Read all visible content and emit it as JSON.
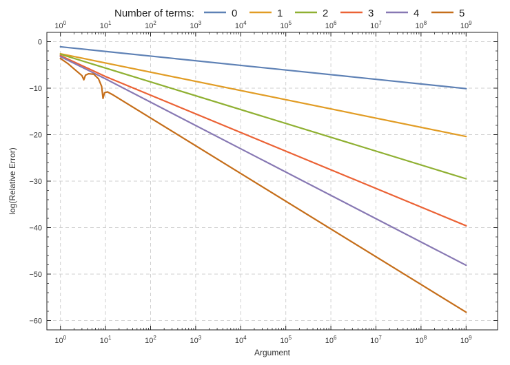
{
  "chart_data": {
    "type": "line",
    "legend": {
      "title": "Number of terms:",
      "placement": "top"
    },
    "xlabel": "Argument",
    "ylabel": "log(Relative Error)",
    "x_scale": "log10",
    "xlim": [
      0.5,
      5000000000
    ],
    "ylim": [
      -62,
      2
    ],
    "x_ticks": [
      {
        "value": 1,
        "base": "10",
        "exp": "0"
      },
      {
        "value": 10,
        "base": "10",
        "exp": "1"
      },
      {
        "value": 100,
        "base": "10",
        "exp": "2"
      },
      {
        "value": 1000,
        "base": "10",
        "exp": "3"
      },
      {
        "value": 10000,
        "base": "10",
        "exp": "4"
      },
      {
        "value": 100000,
        "base": "10",
        "exp": "5"
      },
      {
        "value": 1000000,
        "base": "10",
        "exp": "6"
      },
      {
        "value": 10000000,
        "base": "10",
        "exp": "7"
      },
      {
        "value": 100000000,
        "base": "10",
        "exp": "8"
      },
      {
        "value": 1000000000,
        "base": "10",
        "exp": "9"
      }
    ],
    "y_ticks": [
      {
        "value": 0,
        "label": "0"
      },
      {
        "value": -10,
        "label": "−10"
      },
      {
        "value": -20,
        "label": "−20"
      },
      {
        "value": -30,
        "label": "−30"
      },
      {
        "value": -40,
        "label": "−40"
      },
      {
        "value": -50,
        "label": "−50"
      },
      {
        "value": -60,
        "label": "−60"
      }
    ],
    "grid": true,
    "series": [
      {
        "name": "0",
        "color": "#5e81b5",
        "x": [
          1,
          1000000000
        ],
        "y": [
          -1.1,
          -10.1
        ]
      },
      {
        "name": "1",
        "color": "#e19c24",
        "x": [
          1,
          1000000000
        ],
        "y": [
          -2.6,
          -20.4
        ]
      },
      {
        "name": "2",
        "color": "#8fb032",
        "x": [
          1,
          1000000000
        ],
        "y": [
          -2.7,
          -29.5
        ]
      },
      {
        "name": "3",
        "color": "#eb6235",
        "x": [
          1,
          10,
          1000000000
        ],
        "y": [
          -3.0,
          -7.5,
          -39.6
        ]
      },
      {
        "name": "4",
        "color": "#8778b3",
        "x": [
          1,
          10,
          1000000000
        ],
        "y": [
          -3.2,
          -8.0,
          -48.1
        ]
      },
      {
        "name": "5",
        "color": "#c56e1a",
        "x": [
          1,
          1.5,
          2.2,
          3.0,
          3.3,
          3.6,
          4.2,
          5.5,
          7.0,
          8.2,
          8.8,
          9.5,
          11,
          15,
          1000000000
        ],
        "y": [
          -3.6,
          -4.8,
          -6.2,
          -7.3,
          -8.2,
          -7.2,
          -6.9,
          -7.0,
          -8.0,
          -9.6,
          -12.2,
          -11.0,
          -10.8,
          -11.5,
          -58.2
        ]
      }
    ]
  }
}
